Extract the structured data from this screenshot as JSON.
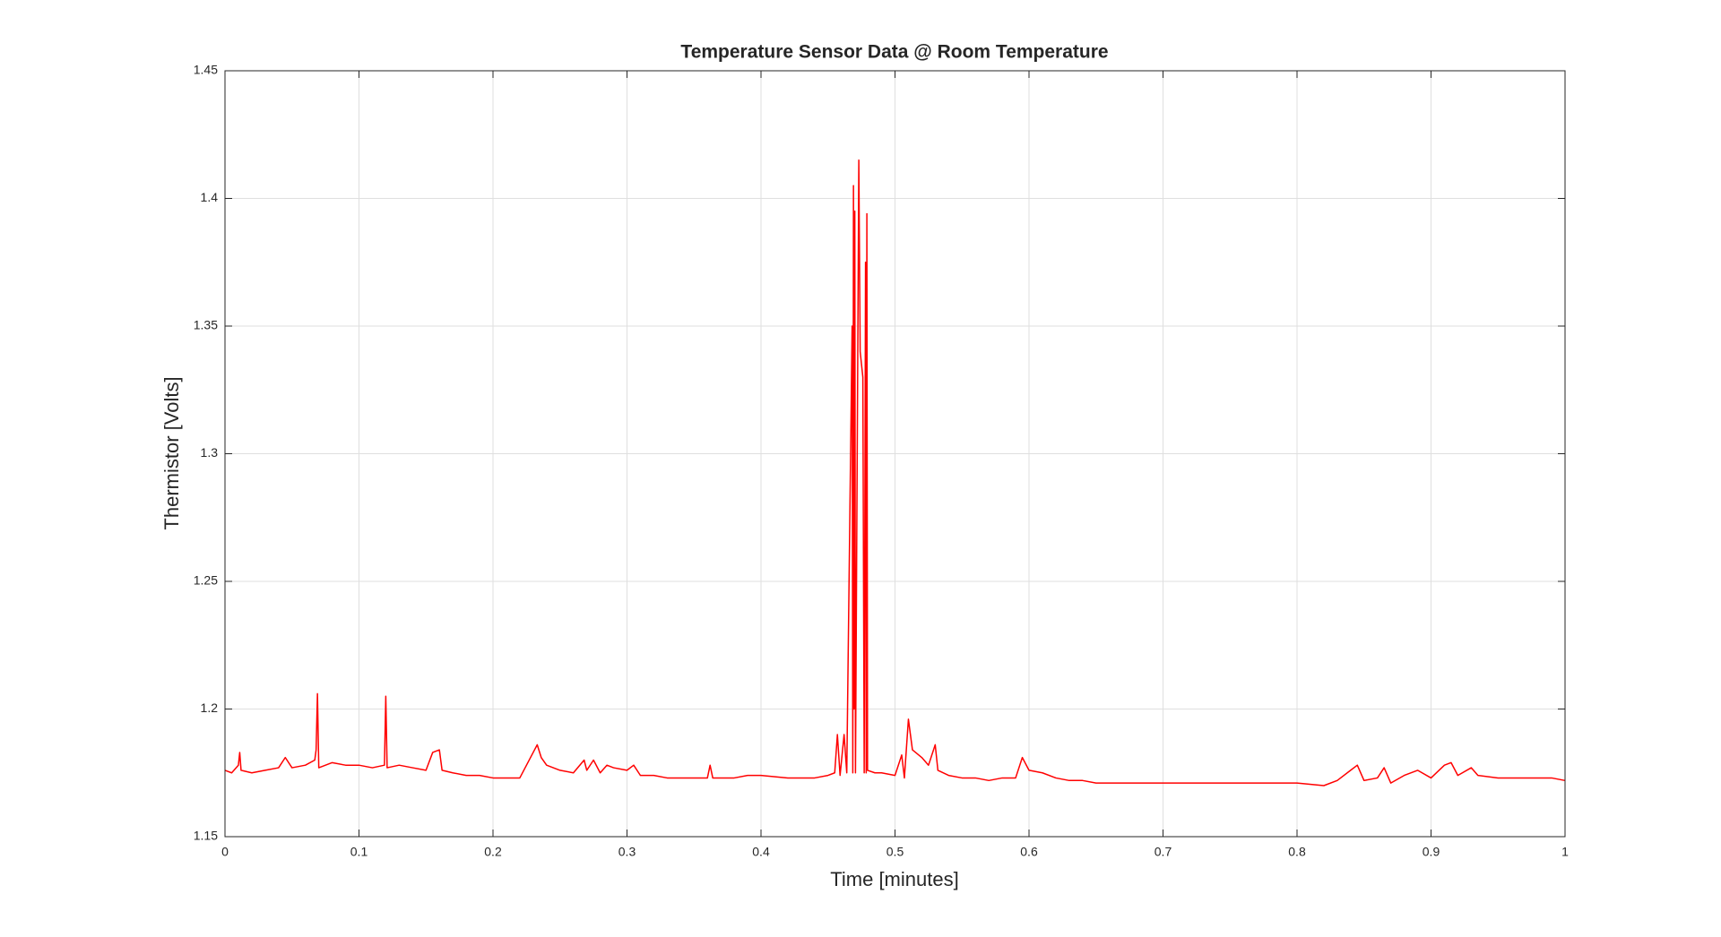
{
  "chart_data": {
    "type": "line",
    "title": "Temperature Sensor Data @ Room Temperature",
    "xlabel": "Time [minutes]",
    "ylabel": "Thermistor [Volts]",
    "color": "#ff0000",
    "grid": true,
    "xlim": [
      0,
      1
    ],
    "xticks": [
      0,
      0.1,
      0.2,
      0.3,
      0.4,
      0.5,
      0.6,
      0.7,
      0.8,
      0.9,
      1
    ],
    "ylim": [
      1.15,
      1.45
    ],
    "yticks": [
      1.15,
      1.2,
      1.25,
      1.3,
      1.35,
      1.4,
      1.45
    ],
    "x": [
      0,
      0.005,
      0.01,
      0.011,
      0.012,
      0.02,
      0.03,
      0.04,
      0.045,
      0.05,
      0.06,
      0.067,
      0.068,
      0.069,
      0.07,
      0.08,
      0.09,
      0.1,
      0.11,
      0.119,
      0.12,
      0.121,
      0.13,
      0.14,
      0.15,
      0.155,
      0.16,
      0.162,
      0.17,
      0.18,
      0.19,
      0.2,
      0.21,
      0.22,
      0.23,
      0.233,
      0.236,
      0.24,
      0.25,
      0.26,
      0.268,
      0.27,
      0.275,
      0.28,
      0.285,
      0.29,
      0.3,
      0.305,
      0.31,
      0.32,
      0.33,
      0.34,
      0.35,
      0.36,
      0.362,
      0.364,
      0.38,
      0.39,
      0.4,
      0.42,
      0.44,
      0.45,
      0.455,
      0.457,
      0.459,
      0.462,
      0.464,
      0.468,
      0.4685,
      0.469,
      0.4695,
      0.47,
      0.4705,
      0.473,
      0.474,
      0.476,
      0.477,
      0.478,
      0.4785,
      0.479,
      0.4795,
      0.485,
      0.49,
      0.5,
      0.505,
      0.507,
      0.51,
      0.513,
      0.52,
      0.525,
      0.53,
      0.532,
      0.54,
      0.55,
      0.56,
      0.57,
      0.58,
      0.59,
      0.595,
      0.6,
      0.61,
      0.62,
      0.63,
      0.64,
      0.65,
      0.67,
      0.7,
      0.72,
      0.75,
      0.78,
      0.8,
      0.82,
      0.83,
      0.84,
      0.845,
      0.85,
      0.86,
      0.865,
      0.87,
      0.88,
      0.89,
      0.9,
      0.91,
      0.915,
      0.92,
      0.93,
      0.935,
      0.95,
      0.97,
      0.99,
      1
    ],
    "values": [
      1.176,
      1.175,
      1.178,
      1.183,
      1.176,
      1.175,
      1.176,
      1.177,
      1.181,
      1.177,
      1.178,
      1.18,
      1.184,
      1.206,
      1.177,
      1.179,
      1.178,
      1.178,
      1.177,
      1.178,
      1.205,
      1.177,
      1.178,
      1.177,
      1.176,
      1.183,
      1.184,
      1.176,
      1.175,
      1.174,
      1.174,
      1.173,
      1.173,
      1.173,
      1.183,
      1.186,
      1.181,
      1.178,
      1.176,
      1.175,
      1.18,
      1.176,
      1.18,
      1.175,
      1.178,
      1.177,
      1.176,
      1.178,
      1.174,
      1.174,
      1.173,
      1.173,
      1.173,
      1.173,
      1.178,
      1.173,
      1.173,
      1.174,
      1.174,
      1.173,
      1.173,
      1.174,
      1.175,
      1.19,
      1.174,
      1.19,
      1.175,
      1.35,
      1.175,
      1.405,
      1.2,
      1.395,
      1.175,
      1.415,
      1.34,
      1.33,
      1.175,
      1.375,
      1.175,
      1.394,
      1.176,
      1.175,
      1.175,
      1.174,
      1.182,
      1.173,
      1.196,
      1.184,
      1.181,
      1.178,
      1.186,
      1.176,
      1.174,
      1.173,
      1.173,
      1.172,
      1.173,
      1.173,
      1.181,
      1.176,
      1.175,
      1.173,
      1.172,
      1.172,
      1.171,
      1.171,
      1.171,
      1.171,
      1.171,
      1.171,
      1.171,
      1.17,
      1.172,
      1.176,
      1.178,
      1.172,
      1.173,
      1.177,
      1.171,
      1.174,
      1.176,
      1.173,
      1.178,
      1.179,
      1.174,
      1.177,
      1.174,
      1.173,
      1.173,
      1.173,
      1.172
    ]
  }
}
